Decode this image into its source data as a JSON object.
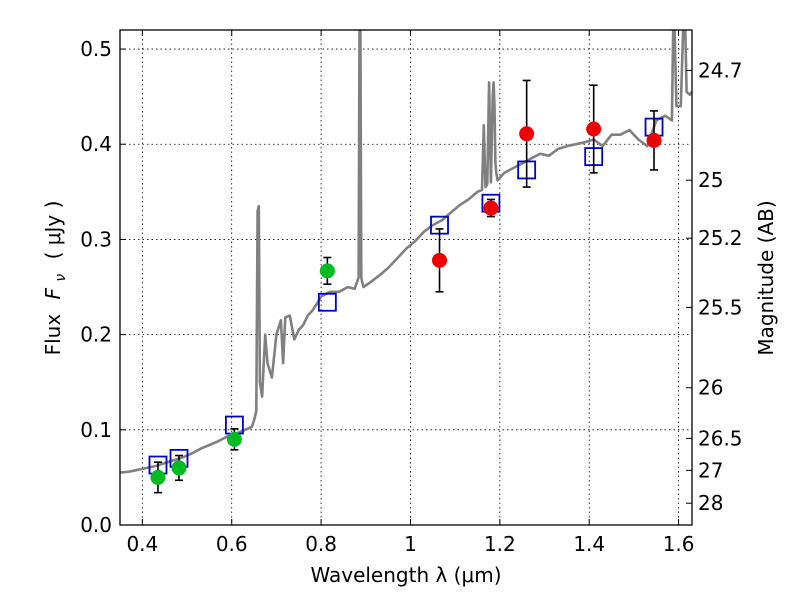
{
  "chart_data": {
    "type": "scatter",
    "xlabel": "Wavelength  λ (μm)",
    "ylabel_prefix": "Flux",
    "ylabel_symbol": "F",
    "ylabel_sub": "ν",
    "ylabel_units": "( μJy )",
    "ylabel_right": "Magnitude (AB)",
    "xlim": [
      0.35,
      1.63
    ],
    "ylim": [
      0.0,
      0.52
    ],
    "grid": true,
    "x_ticks": [
      0.4,
      0.6,
      0.8,
      1.0,
      1.2,
      1.4,
      1.6
    ],
    "x_tick_labels": [
      "0.4",
      "0.6",
      "0.8",
      "1",
      "1.2",
      "1.4",
      "1.6"
    ],
    "y_ticks": [
      0.0,
      0.1,
      0.2,
      0.3,
      0.4,
      0.5
    ],
    "y_tick_labels": [
      "0.0",
      "0.1",
      "0.2",
      "0.3",
      "0.4",
      "0.5"
    ],
    "right_ticks": [
      {
        "label": "24.7",
        "flux": 0.4775
      },
      {
        "label": "25",
        "flux": 0.3622
      },
      {
        "label": "25.2",
        "flux": 0.3013
      },
      {
        "label": "25.5",
        "flux": 0.2286
      },
      {
        "label": "26",
        "flux": 0.1442
      },
      {
        "label": "26.5",
        "flux": 0.091
      },
      {
        "label": "27",
        "flux": 0.0574
      },
      {
        "label": "28",
        "flux": 0.0229
      }
    ],
    "series": [
      {
        "name": "model spectrum",
        "kind": "line",
        "color": "#808080",
        "x": [
          0.35,
          0.37,
          0.39,
          0.41,
          0.43,
          0.45,
          0.47,
          0.49,
          0.51,
          0.53,
          0.55,
          0.57,
          0.59,
          0.61,
          0.63,
          0.645,
          0.65,
          0.655,
          0.658,
          0.6605,
          0.663,
          0.668,
          0.675,
          0.68,
          0.69,
          0.7,
          0.71,
          0.715,
          0.72,
          0.73,
          0.74,
          0.75,
          0.76,
          0.77,
          0.78,
          0.79,
          0.8,
          0.82,
          0.84,
          0.86,
          0.875,
          0.884,
          0.886,
          0.888,
          0.89,
          0.892,
          0.895,
          0.91,
          0.93,
          0.95,
          0.97,
          0.99,
          1.01,
          1.03,
          1.05,
          1.07,
          1.09,
          1.11,
          1.13,
          1.15,
          1.16,
          1.164,
          1.168,
          1.172,
          1.176,
          1.18,
          1.184,
          1.186,
          1.188,
          1.19,
          1.192,
          1.195,
          1.21,
          1.23,
          1.25,
          1.27,
          1.29,
          1.31,
          1.33,
          1.35,
          1.37,
          1.39,
          1.41,
          1.43,
          1.45,
          1.47,
          1.49,
          1.51,
          1.53,
          1.55,
          1.57,
          1.585,
          1.588,
          1.591,
          1.595,
          1.605,
          1.61,
          1.615,
          1.618,
          1.625,
          1.63
        ],
        "y": [
          0.055,
          0.056,
          0.058,
          0.06,
          0.062,
          0.065,
          0.068,
          0.071,
          0.075,
          0.08,
          0.084,
          0.088,
          0.093,
          0.096,
          0.1,
          0.103,
          0.11,
          0.12,
          0.33,
          0.335,
          0.15,
          0.135,
          0.2,
          0.17,
          0.155,
          0.2,
          0.215,
          0.17,
          0.218,
          0.22,
          0.195,
          0.205,
          0.21,
          0.22,
          0.225,
          0.232,
          0.24,
          0.245,
          0.245,
          0.25,
          0.248,
          0.26,
          0.52,
          0.52,
          0.26,
          0.255,
          0.25,
          0.255,
          0.262,
          0.27,
          0.28,
          0.29,
          0.298,
          0.308,
          0.315,
          0.32,
          0.328,
          0.336,
          0.342,
          0.35,
          0.352,
          0.42,
          0.355,
          0.358,
          0.465,
          0.36,
          0.45,
          0.465,
          0.44,
          0.38,
          0.37,
          0.362,
          0.37,
          0.375,
          0.38,
          0.385,
          0.39,
          0.388,
          0.395,
          0.398,
          0.4,
          0.402,
          0.405,
          0.398,
          0.41,
          0.41,
          0.415,
          0.405,
          0.398,
          0.425,
          0.43,
          0.425,
          0.52,
          0.52,
          0.44,
          0.44,
          0.52,
          0.52,
          0.455,
          0.452,
          0.455
        ]
      },
      {
        "name": "model photometry",
        "kind": "open-square",
        "color": "#0000cc",
        "x": [
          0.435,
          0.482,
          0.606,
          0.814,
          1.065,
          1.18,
          1.26,
          1.41,
          1.545
        ],
        "y": [
          0.063,
          0.07,
          0.105,
          0.234,
          0.315,
          0.338,
          0.373,
          0.387,
          0.418
        ]
      },
      {
        "name": "optical observations",
        "kind": "filled-circle",
        "color": "#00bb22",
        "x": [
          0.435,
          0.482,
          0.606,
          0.814
        ],
        "y": [
          0.05,
          0.06,
          0.09,
          0.267
        ],
        "err": [
          0.016,
          0.013,
          0.011,
          0.014
        ]
      },
      {
        "name": "infrared observations",
        "kind": "filled-circle",
        "color": "#ee0000",
        "x": [
          1.065,
          1.18,
          1.26,
          1.41,
          1.545
        ],
        "y": [
          0.278,
          0.333,
          0.411,
          0.416,
          0.404
        ],
        "err": [
          0.033,
          0.009,
          0.056,
          0.046,
          0.031
        ]
      }
    ]
  }
}
